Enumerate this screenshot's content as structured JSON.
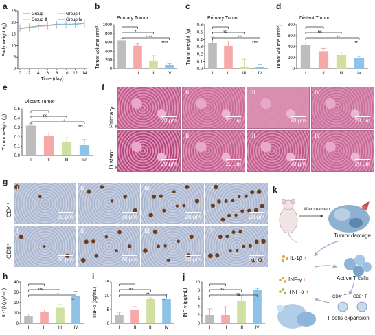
{
  "panels": {
    "a": {
      "label": "a"
    },
    "b": {
      "label": "b"
    },
    "c": {
      "label": "c"
    },
    "d": {
      "label": "d"
    },
    "e": {
      "label": "e"
    },
    "f": {
      "label": "f"
    },
    "g": {
      "label": "g"
    },
    "h": {
      "label": "h"
    },
    "i": {
      "label": "i"
    },
    "j": {
      "label": "j"
    },
    "k": {
      "label": "k"
    }
  },
  "chart_data": [
    {
      "id": "a",
      "type": "line",
      "xlabel": "Time (day)",
      "ylabel": "Body weight (g)",
      "x": [
        0,
        2,
        4,
        6,
        8,
        10,
        12,
        14
      ],
      "xticks": [
        "0",
        "2",
        "4",
        "6",
        "8",
        "10",
        "12",
        "14"
      ],
      "ylim": [
        0,
        25
      ],
      "yticks": [
        "0",
        "5",
        "10",
        "15",
        "20",
        "25"
      ],
      "series": [
        {
          "name": "Group Ⅰ",
          "color": "#9e9e9e",
          "values": [
            17.5,
            18.0,
            18.5,
            18.8,
            19.3,
            19.0,
            19.5,
            19.8
          ]
        },
        {
          "name": "Group Ⅱ",
          "color": "#f4a3a3",
          "values": [
            17.3,
            17.8,
            18.3,
            18.6,
            18.9,
            19.1,
            19.3,
            19.5
          ]
        },
        {
          "name": "Group Ⅲ",
          "color": "#c8dc8a",
          "values": [
            17.6,
            18.1,
            18.4,
            18.9,
            19.0,
            19.2,
            19.4,
            19.6
          ]
        },
        {
          "name": "Group Ⅳ",
          "color": "#7fb6de",
          "values": [
            17.4,
            17.9,
            18.6,
            18.7,
            19.2,
            19.3,
            19.1,
            19.7
          ]
        }
      ]
    },
    {
      "id": "b",
      "type": "bar",
      "title": "Primary Tumor",
      "ylabel": "Tumor volume (mm³)",
      "categories": [
        "I",
        "II",
        "III",
        "IV"
      ],
      "values": [
        650,
        520,
        190,
        90
      ],
      "errors": [
        40,
        55,
        110,
        30
      ],
      "ylim": [
        0,
        1000
      ],
      "yticks": [
        "0",
        "200",
        "400",
        "600",
        "800",
        "1000"
      ],
      "sig": [
        "*",
        "****",
        "****"
      ]
    },
    {
      "id": "c",
      "type": "bar",
      "title": "Primary Tumor",
      "ylabel": "Tumor weight (g)",
      "categories": [
        "I",
        "II",
        "III",
        "IV"
      ],
      "values": [
        0.35,
        0.31,
        0.03,
        0.02
      ],
      "errors": [
        0.08,
        0.07,
        0.1,
        0.04
      ],
      "ylim": [
        0,
        0.6
      ],
      "yticks": [
        "0.0",
        "0.1",
        "0.2",
        "0.3",
        "0.4",
        "0.5",
        "0.6"
      ],
      "sig": [
        "ns",
        "***",
        "****"
      ]
    },
    {
      "id": "d",
      "type": "bar",
      "title": "Distant Tumor",
      "ylabel": "Tumor volume (mm³)",
      "categories": [
        "I",
        "II",
        "III",
        "IV"
      ],
      "values": [
        430,
        320,
        250,
        200
      ],
      "errors": [
        40,
        50,
        55,
        25
      ],
      "ylim": [
        0,
        800
      ],
      "yticks": [
        "0",
        "200",
        "400",
        "600",
        "800"
      ],
      "sig": [
        "ns",
        "**",
        "**"
      ]
    },
    {
      "id": "e",
      "type": "bar",
      "title": "Distant Tumor",
      "ylabel": "Tumor weight (g)",
      "categories": [
        "I",
        "II",
        "III",
        "IV"
      ],
      "values": [
        0.32,
        0.21,
        0.14,
        0.11
      ],
      "errors": [
        0.02,
        0.03,
        0.05,
        0.06
      ],
      "ylim": [
        0,
        0.5
      ],
      "yticks": [
        "0.0",
        "0.1",
        "0.2",
        "0.3",
        "0.4",
        "0.5"
      ],
      "sig": [
        "ns",
        "**",
        "***"
      ]
    },
    {
      "id": "h",
      "type": "bar",
      "ylabel": "IL-1β (pg/mL)",
      "categories": [
        "I",
        "II",
        "III",
        "IV"
      ],
      "values": [
        7,
        11,
        15,
        26
      ],
      "errors": [
        2,
        2,
        3,
        5
      ],
      "ylim": [
        0,
        40
      ],
      "yticks": [
        "0",
        "10",
        "20",
        "30",
        "40"
      ],
      "sig": [
        "ns",
        "*",
        "**"
      ]
    },
    {
      "id": "i",
      "type": "bar",
      "ylabel": "TNF-α (pg/mL)",
      "categories": [
        "I",
        "II",
        "III",
        "IV"
      ],
      "values": [
        3,
        5,
        9,
        9
      ],
      "errors": [
        1,
        1,
        0.3,
        1.5
      ],
      "ylim": [
        0,
        15
      ],
      "yticks": [
        "0",
        "5",
        "10",
        "15"
      ],
      "sig": [
        "ns",
        "**",
        "**"
      ]
    },
    {
      "id": "j",
      "type": "bar",
      "ylabel": "INF-γ (pg/mL)",
      "categories": [
        "I",
        "II",
        "III",
        "IV"
      ],
      "values": [
        2,
        2,
        5.5,
        8
      ],
      "errors": [
        1.5,
        2,
        1.2,
        0.5
      ],
      "ylim": [
        0,
        10
      ],
      "yticks": [
        "0",
        "2",
        "4",
        "6",
        "8",
        "10"
      ],
      "sig": [
        "ns",
        "ns",
        "*"
      ]
    }
  ],
  "bar_colors": [
    "#bdbdbd",
    "#f5aaa9",
    "#cfe0a0",
    "#8ec2e6"
  ],
  "histology": {
    "row_labels": [
      "Primary Tumor",
      "Distant Tumor"
    ],
    "col_labels": [
      "I",
      "II",
      "III",
      "IV"
    ],
    "scale": "20 μm"
  },
  "ihc": {
    "row_labels": [
      "CD4⁺",
      "CD8⁺"
    ],
    "col_labels": [
      "I",
      "II",
      "III",
      "IV"
    ],
    "scale": "20 μm"
  },
  "schematic": {
    "after_treatment": "After treatment",
    "tumor_damage": "Tumor damage",
    "il1b": "IL-1β",
    "active_t": "Active T cells",
    "infg": "INF-γ",
    "tnfa": "TNF-α",
    "cd4": "CD4⁺ T",
    "cd8": "CD8⁺ T",
    "expansion": "T cells expansion",
    "up": "↑"
  }
}
